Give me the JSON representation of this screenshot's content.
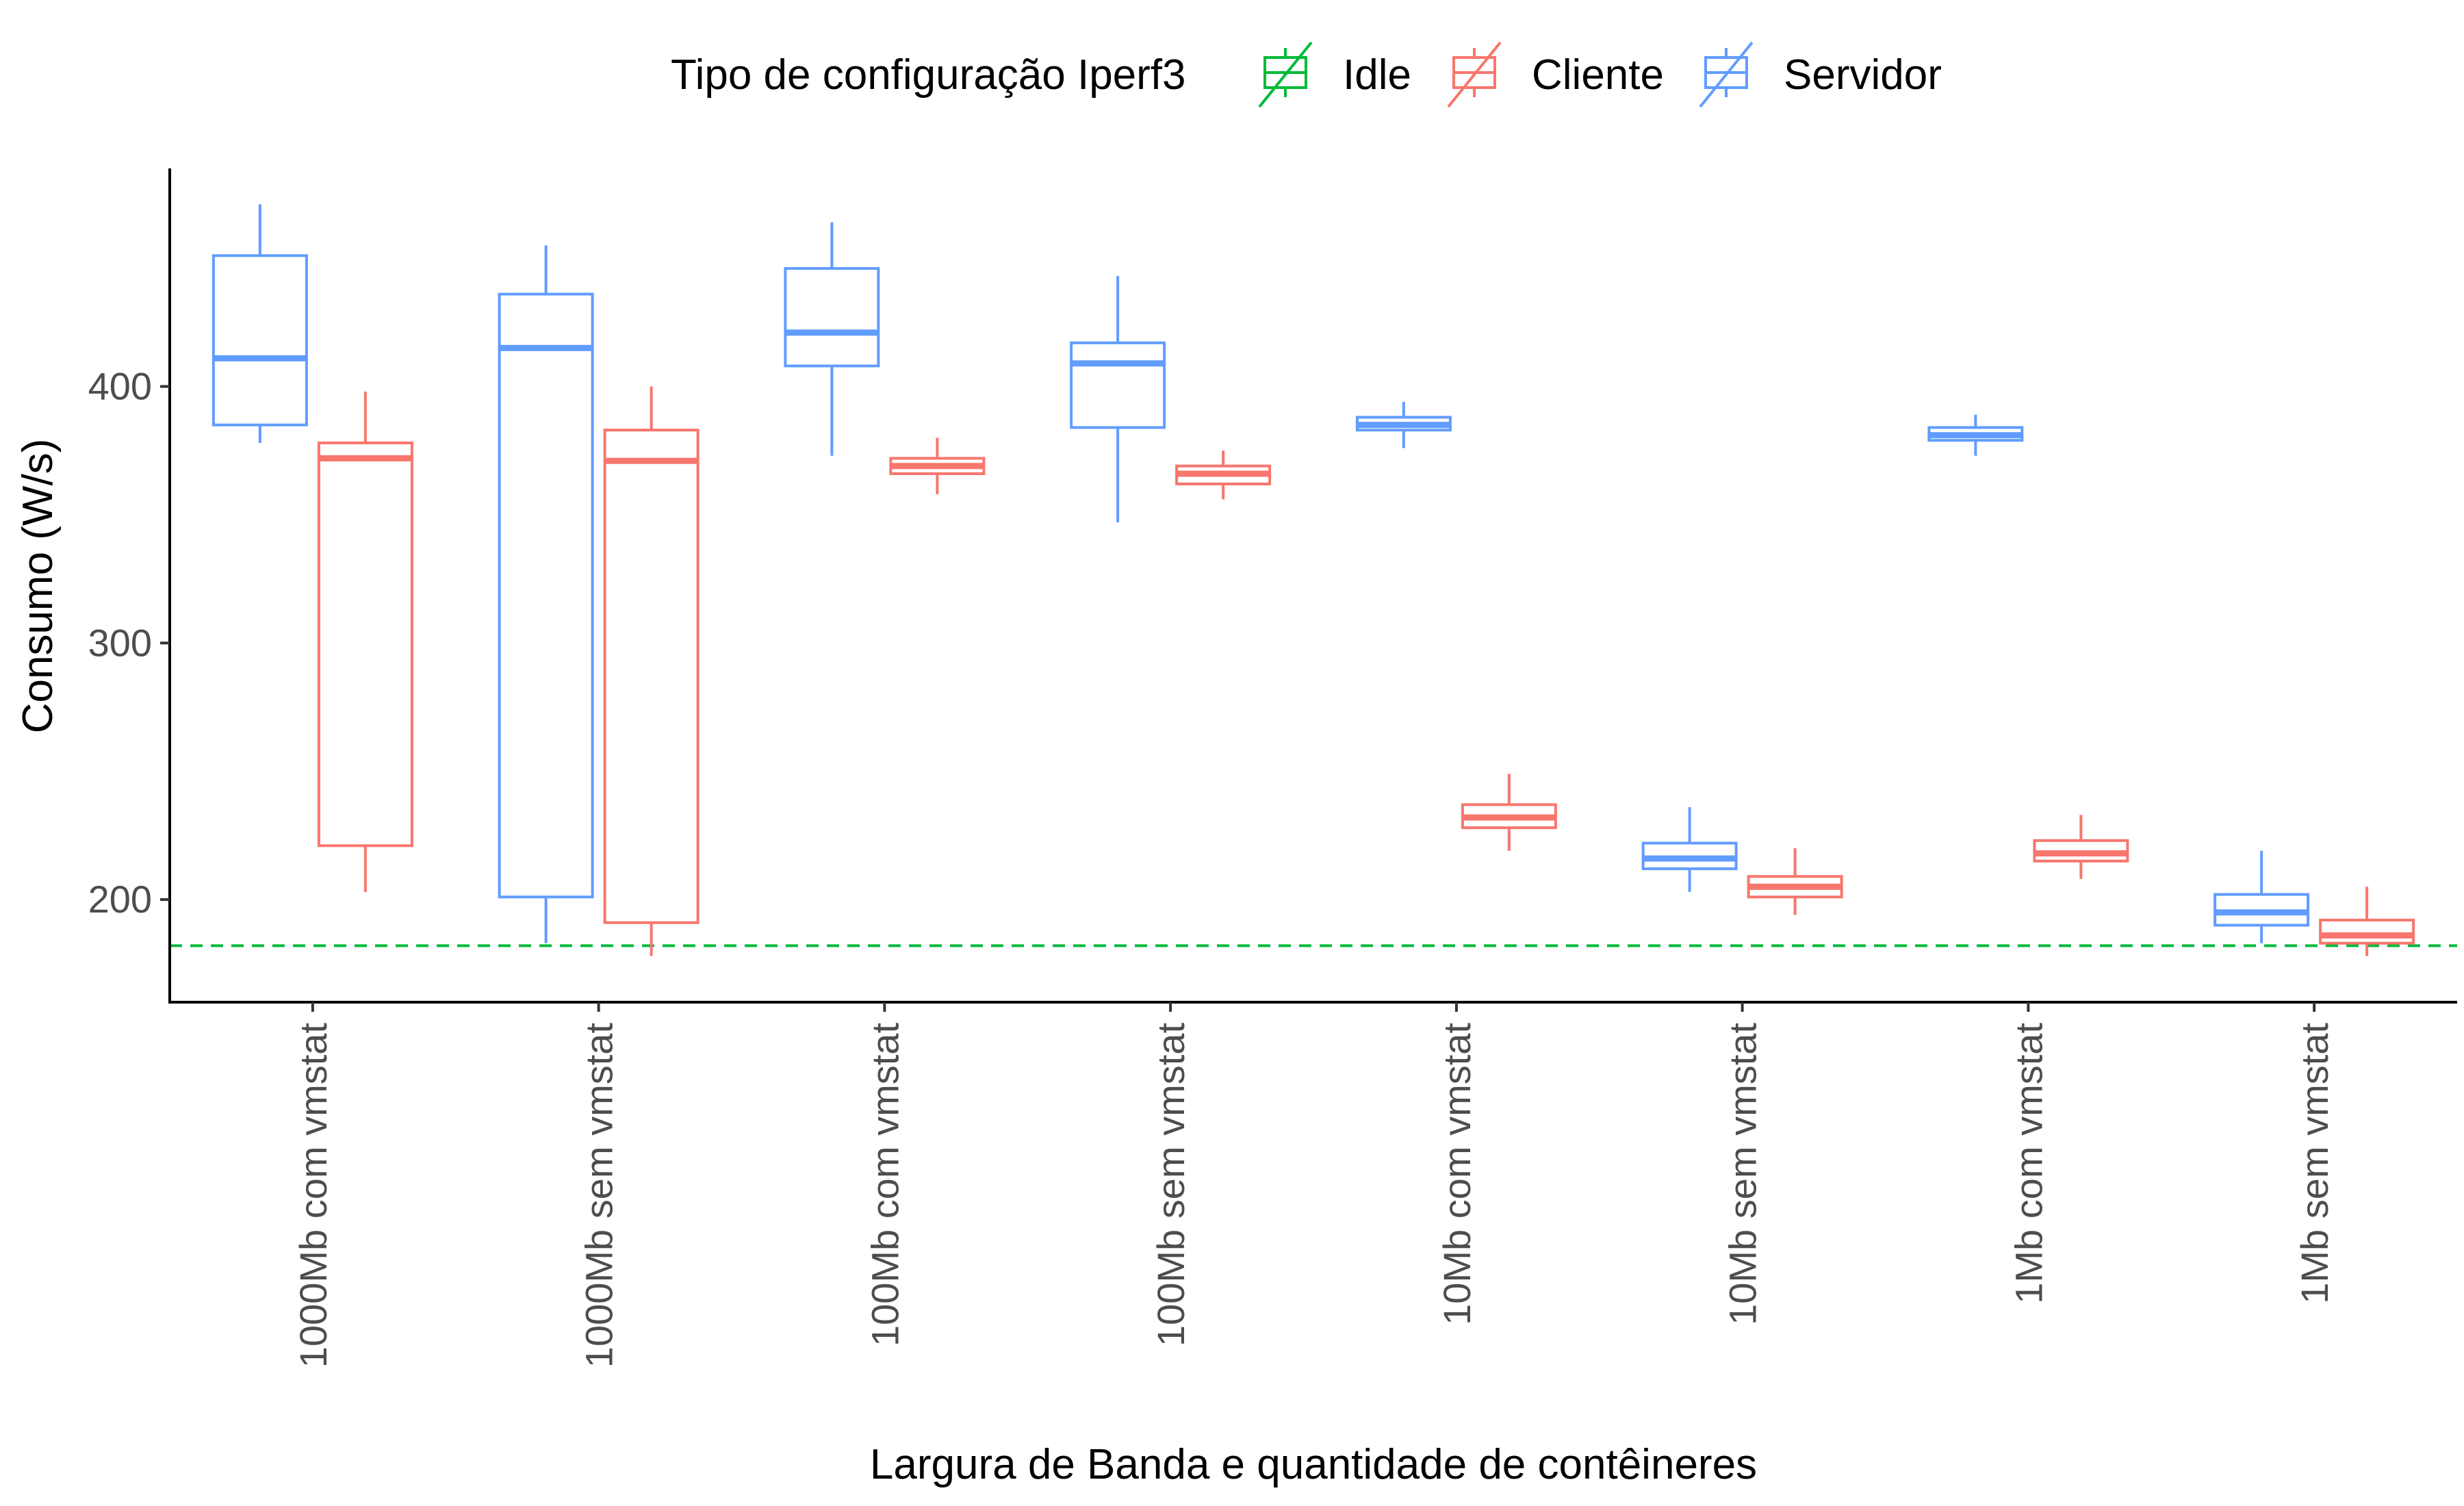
{
  "chart_data": {
    "type": "boxplot",
    "xlabel": "Largura de Banda e quantidade de contêineres",
    "ylabel": "Consumo (W/s)",
    "ylim": [
      160,
      485
    ],
    "yticks": [
      200,
      300,
      400
    ],
    "grid": false,
    "legend": {
      "title": "Tipo de configuração Iperf3",
      "position": "top",
      "entries": [
        "Idle",
        "Cliente",
        "Servidor"
      ]
    },
    "colors": {
      "Idle": "#00ba38",
      "Cliente": "#f8766d",
      "Servidor": "#619cff"
    },
    "categories": [
      "1000Mb com vmstat",
      "1000Mb sem vmstat",
      "100Mb com vmstat",
      "100Mb sem vmstat",
      "10Mb com vmstat",
      "10Mb sem vmstat",
      "1Mb com vmstat",
      "1Mb sem vmstat"
    ],
    "series": [
      {
        "name": "Servidor",
        "boxes": [
          {
            "whisker_low": 378,
            "q1": 385,
            "median": 411,
            "q3": 451,
            "whisker_high": 471
          },
          {
            "whisker_low": 183,
            "q1": 201,
            "median": 415,
            "q3": 436,
            "whisker_high": 455
          },
          {
            "whisker_low": 373,
            "q1": 408,
            "median": 421,
            "q3": 446,
            "whisker_high": 464
          },
          {
            "whisker_low": 347,
            "q1": 384,
            "median": 409,
            "q3": 417,
            "whisker_high": 443
          },
          {
            "whisker_low": 376,
            "q1": 383,
            "median": 385,
            "q3": 388,
            "whisker_high": 394
          },
          {
            "whisker_low": 203,
            "q1": 212,
            "median": 216,
            "q3": 222,
            "whisker_high": 236
          },
          {
            "whisker_low": 373,
            "q1": 379,
            "median": 381,
            "q3": 384,
            "whisker_high": 389
          },
          {
            "whisker_low": 183,
            "q1": 190,
            "median": 195,
            "q3": 202,
            "whisker_high": 219
          }
        ]
      },
      {
        "name": "Cliente",
        "boxes": [
          {
            "whisker_low": 203,
            "q1": 221,
            "median": 372,
            "q3": 378,
            "whisker_high": 398
          },
          {
            "whisker_low": 178,
            "q1": 191,
            "median": 371,
            "q3": 383,
            "whisker_high": 400
          },
          {
            "whisker_low": 358,
            "q1": 366,
            "median": 369,
            "q3": 372,
            "whisker_high": 380
          },
          {
            "whisker_low": 356,
            "q1": 362,
            "median": 366,
            "q3": 369,
            "whisker_high": 375
          },
          {
            "whisker_low": 219,
            "q1": 228,
            "median": 232,
            "q3": 237,
            "whisker_high": 249
          },
          {
            "whisker_low": 194,
            "q1": 201,
            "median": 205,
            "q3": 209,
            "whisker_high": 220
          },
          {
            "whisker_low": 208,
            "q1": 215,
            "median": 218,
            "q3": 223,
            "whisker_high": 233
          },
          {
            "whisker_low": 178,
            "q1": 183,
            "median": 186,
            "q3": 192,
            "whisker_high": 205
          }
        ]
      }
    ],
    "reference_lines": [
      {
        "name": "Idle",
        "value": 182,
        "style": "dashed"
      }
    ]
  }
}
